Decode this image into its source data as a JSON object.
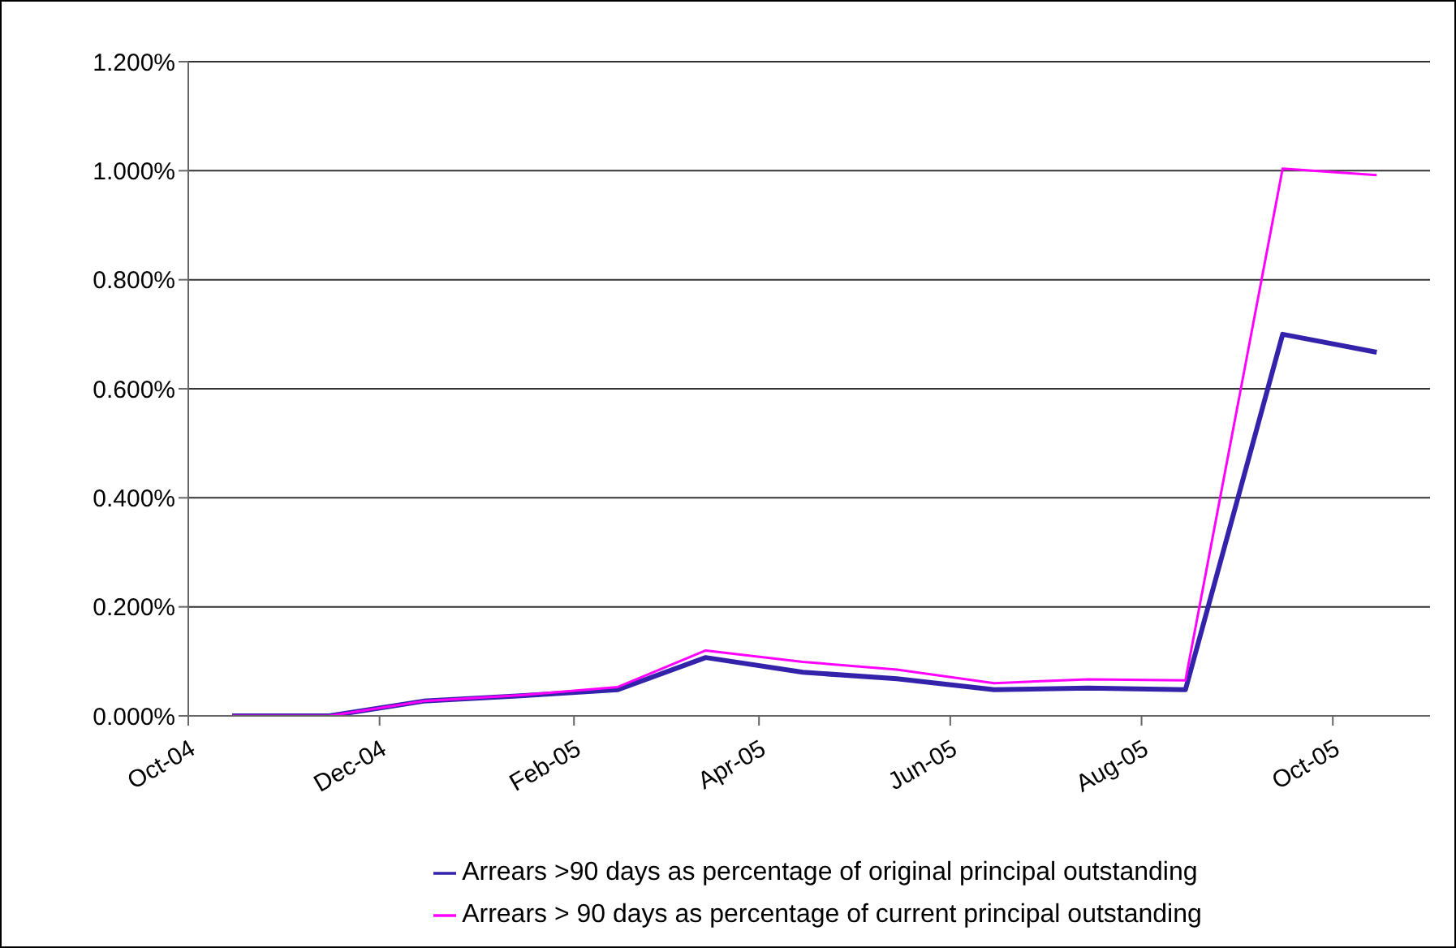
{
  "chart_data": {
    "type": "line",
    "x": [
      "2004-10-15",
      "2004-11-15",
      "2004-12-15",
      "2005-01-15",
      "2005-02-15",
      "2005-03-15",
      "2005-04-15",
      "2005-05-15",
      "2005-06-15",
      "2005-07-15",
      "2005-08-15",
      "2005-09-15",
      "2005-10-15"
    ],
    "series": [
      {
        "name": "Arrears >90 days as percentage of original principal outstanding",
        "color": "#3322aa",
        "values": [
          0,
          0,
          0.027,
          0.037,
          0.048,
          0.107,
          0.08,
          0.068,
          0.048,
          0.051,
          0.048,
          0.7,
          0.667
        ]
      },
      {
        "name": "Arrears > 90 days as percentage of current principal outstanding",
        "color": "#ff00ff",
        "values": [
          0,
          0,
          0.027,
          0.038,
          0.053,
          0.12,
          0.099,
          0.085,
          0.06,
          0.067,
          0.065,
          1.004,
          0.992
        ]
      }
    ],
    "xlim": [
      "2004-10-01",
      "2005-11-01"
    ],
    "xticks": [
      {
        "value": "2004-10-01",
        "label": "Oct-04"
      },
      {
        "value": "2004-12-01",
        "label": "Dec-04"
      },
      {
        "value": "2005-02-01",
        "label": "Feb-05"
      },
      {
        "value": "2005-04-01",
        "label": "Apr-05"
      },
      {
        "value": "2005-06-01",
        "label": "Jun-05"
      },
      {
        "value": "2005-08-01",
        "label": "Aug-05"
      },
      {
        "value": "2005-10-01",
        "label": "Oct-05"
      }
    ],
    "ylim": [
      0,
      1.2
    ],
    "yticks": [
      {
        "value": 0,
        "label": "0.000%"
      },
      {
        "value": 0.2,
        "label": "0.200%"
      },
      {
        "value": 0.4,
        "label": "0.400%"
      },
      {
        "value": 0.6,
        "label": "0.600%"
      },
      {
        "value": 0.8,
        "label": "0.800%"
      },
      {
        "value": 1.0,
        "label": "1.000%"
      },
      {
        "value": 1.2,
        "label": "1.200%"
      }
    ],
    "grid": "y",
    "legend": "bottom",
    "marker": "none",
    "line_style": "solid"
  }
}
